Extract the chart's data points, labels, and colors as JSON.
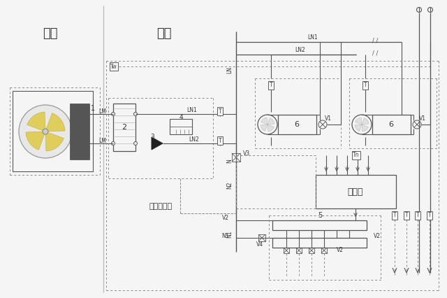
{
  "bg_color": "#f5f5f5",
  "line_color": "#555555",
  "dashed_color": "#888888",
  "outdoor_label": "室外",
  "indoor_label": "室内",
  "tap_water_label": "自来水补水",
  "controller_label": "控制器",
  "figsize": [
    6.4,
    4.26
  ],
  "dpi": 100
}
